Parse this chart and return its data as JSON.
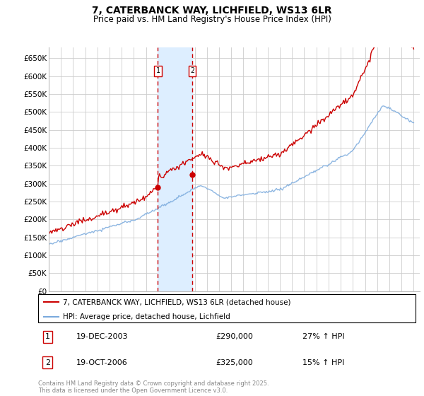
{
  "title": "7, CATERBANCK WAY, LICHFIELD, WS13 6LR",
  "subtitle": "Price paid vs. HM Land Registry's House Price Index (HPI)",
  "ylabel_ticks": [
    "£0",
    "£50K",
    "£100K",
    "£150K",
    "£200K",
    "£250K",
    "£300K",
    "£350K",
    "£400K",
    "£450K",
    "£500K",
    "£550K",
    "£600K",
    "£650K"
  ],
  "ytick_values": [
    0,
    50000,
    100000,
    150000,
    200000,
    250000,
    300000,
    350000,
    400000,
    450000,
    500000,
    550000,
    600000,
    650000
  ],
  "ylim": [
    0,
    680000
  ],
  "xlim_start": 1995.0,
  "xlim_end": 2025.5,
  "purchase1_date": 2003.97,
  "purchase1_price": 290000,
  "purchase2_date": 2006.8,
  "purchase2_price": 325000,
  "legend_line1": "7, CATERBANCK WAY, LICHFIELD, WS13 6LR (detached house)",
  "legend_line2": "HPI: Average price, detached house, Lichfield",
  "footnote": "Contains HM Land Registry data © Crown copyright and database right 2025.\nThis data is licensed under the Open Government Licence v3.0.",
  "red_color": "#cc0000",
  "blue_color": "#7aaadd",
  "shaded_color": "#ddeeff",
  "grid_color": "#cccccc",
  "background_color": "#ffffff"
}
